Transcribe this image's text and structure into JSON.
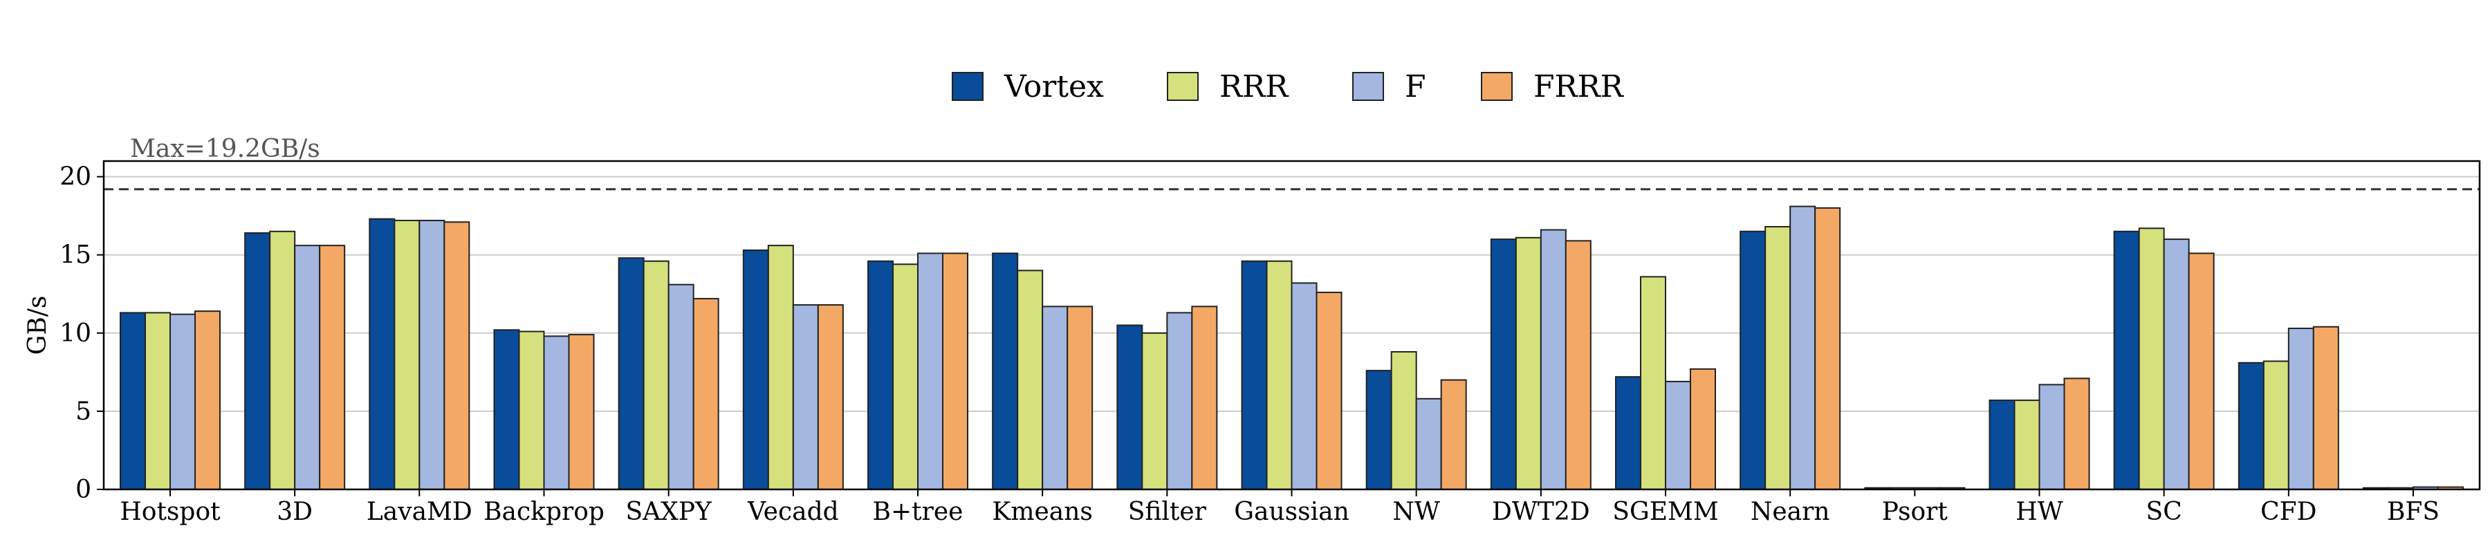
{
  "chart_data": {
    "type": "bar",
    "ylabel": "GB/s",
    "ylim": [
      0,
      21
    ],
    "yticks": [
      0,
      5,
      10,
      15,
      20
    ],
    "grid": true,
    "legend_placement": "top-center",
    "categories": [
      "Hotspot",
      "3D",
      "LavaMD",
      "Backprop",
      "SAXPY",
      "Vecadd",
      "B+tree",
      "Kmeans",
      "Sfilter",
      "Gaussian",
      "NW",
      "DWT2D",
      "SGEMM",
      "Nearn",
      "Psort",
      "HW",
      "SC",
      "CFD",
      "BFS"
    ],
    "series": [
      {
        "name": "Vortex",
        "color": "#084C9A",
        "values": [
          11.3,
          16.4,
          17.3,
          10.2,
          14.8,
          15.3,
          14.6,
          15.1,
          10.5,
          14.6,
          7.6,
          16.0,
          7.2,
          16.5,
          0.1,
          5.7,
          16.5,
          8.1,
          0.1
        ]
      },
      {
        "name": "RRR",
        "color": "#D6E07D",
        "values": [
          11.3,
          16.5,
          17.2,
          10.1,
          14.6,
          15.6,
          14.4,
          14.0,
          10.0,
          14.6,
          8.8,
          16.1,
          13.6,
          16.8,
          0.1,
          5.7,
          16.7,
          8.2,
          0.1
        ]
      },
      {
        "name": "F",
        "color": "#A3B7E0",
        "values": [
          11.2,
          15.6,
          17.2,
          9.8,
          13.1,
          11.8,
          15.1,
          11.7,
          11.3,
          13.2,
          5.8,
          16.6,
          6.9,
          18.1,
          0.1,
          6.7,
          16.0,
          10.3,
          0.15
        ]
      },
      {
        "name": "FRRR",
        "color": "#F3A965",
        "values": [
          11.4,
          15.6,
          17.1,
          9.9,
          12.2,
          11.8,
          15.1,
          11.7,
          11.7,
          12.6,
          7.0,
          15.9,
          7.7,
          18.0,
          0.1,
          7.1,
          15.1,
          10.4,
          0.15
        ]
      }
    ],
    "reference_line": {
      "value": 19.2,
      "label": "Max=19.2GB/s",
      "style": "dashed"
    }
  }
}
